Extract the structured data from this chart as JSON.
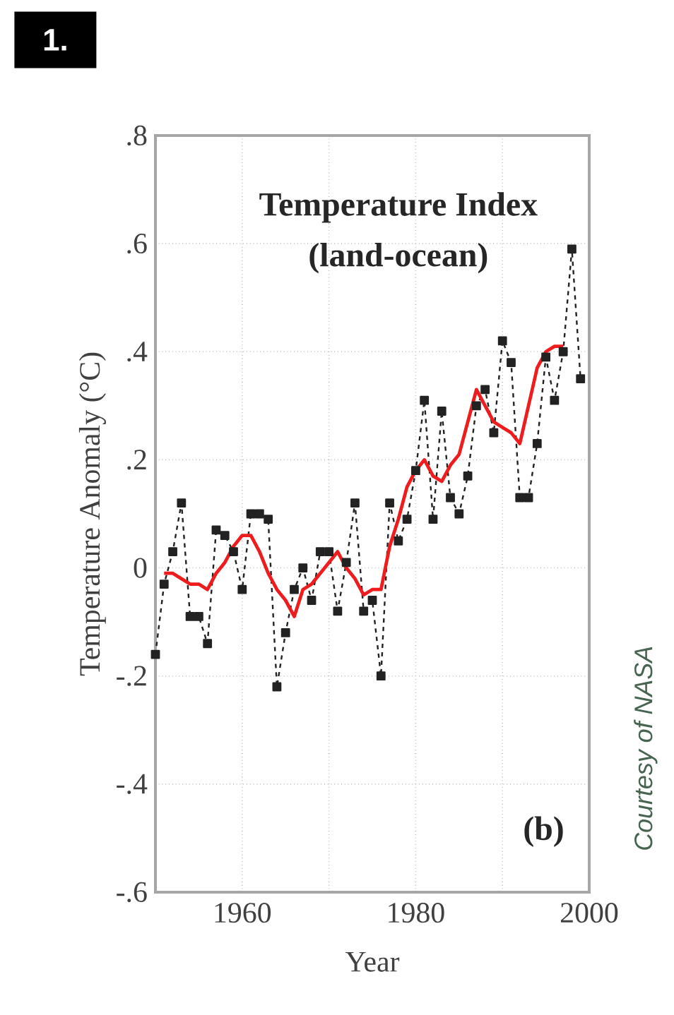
{
  "chart_data": {
    "type": "line",
    "title": "Temperature Index",
    "subtitle": "(land-ocean)",
    "xlabel": "Year",
    "ylabel": "Temperature Anomaly (°C)",
    "annotations": [
      "1.",
      "(b)",
      "Courtesy of NASA"
    ],
    "xlim": [
      1950,
      2000
    ],
    "xticks": [
      1960,
      {
        "value": 1970,
        "label": null
      },
      1980,
      {
        "value": 1990,
        "label": null
      },
      2000
    ],
    "ylim": [
      -0.6,
      0.8
    ],
    "yticks": [
      {
        "value": -0.6,
        "label": "-.6"
      },
      {
        "value": -0.4,
        "label": "-.4"
      },
      {
        "value": -0.2,
        "label": "-.2"
      },
      0,
      {
        "value": 0.2,
        "label": ".2"
      },
      {
        "value": 0.4,
        "label": ".4"
      },
      {
        "value": 0.6,
        "label": ".6"
      },
      {
        "value": 0.8,
        "label": ".8"
      }
    ],
    "grid": true,
    "series": [
      {
        "color": "#222222",
        "marker": "square",
        "line_style": "dashed",
        "x": [
          1950,
          1951,
          1952,
          1953,
          1954,
          1955,
          1956,
          1957,
          1958,
          1959,
          1960,
          1961,
          1962,
          1963,
          1964,
          1965,
          1966,
          1967,
          1968,
          1969,
          1970,
          1971,
          1972,
          1973,
          1974,
          1975,
          1976,
          1977,
          1978,
          1979,
          1980,
          1981,
          1982,
          1983,
          1984,
          1985,
          1986,
          1987,
          1988,
          1989,
          1990,
          1991,
          1992,
          1993,
          1994,
          1995,
          1996,
          1997,
          1998,
          1999
        ],
        "values": [
          -0.16,
          -0.03,
          0.03,
          0.12,
          -0.09,
          -0.09,
          -0.14,
          0.07,
          0.06,
          0.03,
          -0.04,
          0.1,
          0.1,
          0.09,
          -0.22,
          -0.12,
          -0.04,
          0.0,
          -0.06,
          0.03,
          0.03,
          -0.08,
          0.01,
          0.12,
          -0.08,
          -0.06,
          -0.2,
          0.12,
          0.05,
          0.09,
          0.18,
          0.31,
          0.09,
          0.29,
          0.13,
          0.1,
          0.17,
          0.3,
          0.33,
          0.25,
          0.42,
          0.38,
          0.13,
          0.13,
          0.23,
          0.39,
          0.31,
          0.4,
          0.59,
          0.35
        ]
      },
      {
        "color": "#ee1c1c",
        "marker": "none",
        "line_style": "solid",
        "x": [
          1951,
          1952,
          1953,
          1954,
          1955,
          1956,
          1957,
          1958,
          1959,
          1960,
          1961,
          1962,
          1963,
          1964,
          1965,
          1966,
          1967,
          1968,
          1969,
          1970,
          1971,
          1972,
          1973,
          1974,
          1975,
          1976,
          1977,
          1978,
          1979,
          1980,
          1981,
          1982,
          1983,
          1984,
          1985,
          1986,
          1987,
          1988,
          1989,
          1990,
          1991,
          1992,
          1993,
          1994,
          1995,
          1996,
          1997
        ],
        "values": [
          -0.01,
          -0.01,
          -0.02,
          -0.03,
          -0.03,
          -0.04,
          -0.01,
          0.01,
          0.04,
          0.06,
          0.06,
          0.03,
          -0.01,
          -0.04,
          -0.06,
          -0.09,
          -0.04,
          -0.03,
          -0.01,
          0.01,
          0.03,
          0.0,
          -0.02,
          -0.05,
          -0.04,
          -0.04,
          0.04,
          0.09,
          0.15,
          0.18,
          0.2,
          0.17,
          0.16,
          0.19,
          0.21,
          0.27,
          0.33,
          0.3,
          0.27,
          0.26,
          0.25,
          0.23,
          0.3,
          0.37,
          0.4,
          0.41,
          0.41
        ]
      }
    ]
  }
}
